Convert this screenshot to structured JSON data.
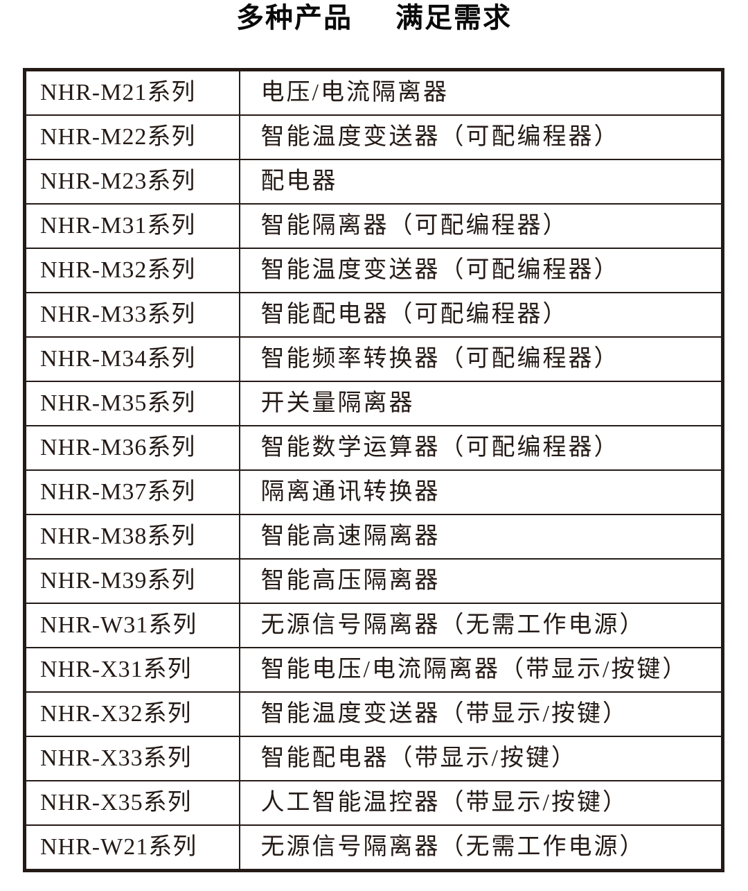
{
  "title": {
    "part1": "多种产品",
    "part2": "满足需求"
  },
  "colors": {
    "text": "#241a16",
    "border": "#241a16",
    "background": "#ffffff"
  },
  "table": {
    "columns": [
      "series",
      "description"
    ],
    "rows": [
      {
        "series": "NHR-M21系列",
        "description": "电压/电流隔离器"
      },
      {
        "series": "NHR-M22系列",
        "description": "智能温度变送器（可配编程器）"
      },
      {
        "series": "NHR-M23系列",
        "description": "配电器"
      },
      {
        "series": "NHR-M31系列",
        "description": "智能隔离器（可配编程器）"
      },
      {
        "series": "NHR-M32系列",
        "description": "智能温度变送器（可配编程器）"
      },
      {
        "series": "NHR-M33系列",
        "description": "智能配电器（可配编程器）"
      },
      {
        "series": "NHR-M34系列",
        "description": "智能频率转换器（可配编程器）"
      },
      {
        "series": "NHR-M35系列",
        "description": "开关量隔离器"
      },
      {
        "series": "NHR-M36系列",
        "description": "智能数学运算器（可配编程器）"
      },
      {
        "series": "NHR-M37系列",
        "description": "隔离通讯转换器"
      },
      {
        "series": "NHR-M38系列",
        "description": "智能高速隔离器"
      },
      {
        "series": "NHR-M39系列",
        "description": "智能高压隔离器"
      },
      {
        "series": "NHR-W31系列",
        "description": "无源信号隔离器（无需工作电源）"
      },
      {
        "series": "NHR-X31系列",
        "description": "智能电压/电流隔离器（带显示/按键）"
      },
      {
        "series": "NHR-X32系列",
        "description": "智能温度变送器（带显示/按键）"
      },
      {
        "series": "NHR-X33系列",
        "description": "智能配电器（带显示/按键）"
      },
      {
        "series": "NHR-X35系列",
        "description": "人工智能温控器（带显示/按键）"
      },
      {
        "series": "NHR-W21系列",
        "description": "无源信号隔离器（无需工作电源）"
      }
    ]
  }
}
